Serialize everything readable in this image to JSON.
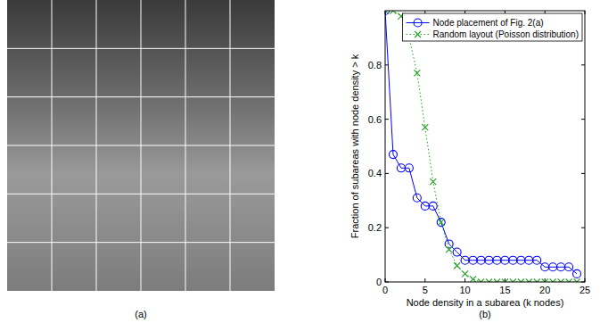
{
  "figure": {
    "panel_labels": [
      "(a)",
      "(b)"
    ]
  },
  "chart_data": {
    "type": "line",
    "x_label": "Node density in a subarea (k nodes)",
    "y_label": "Fraction of subareas with node density > k",
    "x": [
      0,
      1,
      2,
      3,
      4,
      5,
      6,
      7,
      8,
      9,
      10,
      11,
      12,
      13,
      14,
      15,
      16,
      17,
      18,
      19,
      20,
      21,
      22,
      23,
      24
    ],
    "series": [
      {
        "name": "Node placement of Fig. 2(a)",
        "color": "#0000ff",
        "marker": "circle",
        "line_style": "solid",
        "values": [
          1.0,
          0.47,
          0.42,
          0.42,
          0.31,
          0.28,
          0.28,
          0.22,
          0.14,
          0.11,
          0.08,
          0.08,
          0.08,
          0.08,
          0.08,
          0.08,
          0.08,
          0.08,
          0.08,
          0.08,
          0.055,
          0.055,
          0.055,
          0.055,
          0.03
        ]
      },
      {
        "name": "Random layout (Poisson distribution)",
        "color": "#22a022",
        "marker": "x",
        "line_style": "dotted",
        "values": [
          1.0,
          1.0,
          0.98,
          0.9,
          0.77,
          0.57,
          0.37,
          0.22,
          0.12,
          0.06,
          0.03,
          0.01,
          0.0,
          0.0,
          0.0,
          0.0,
          0.0,
          0.0,
          0.0,
          0.0,
          0.0,
          0.0,
          0.0,
          0.0,
          0.0
        ]
      }
    ],
    "xlim": [
      0,
      25
    ],
    "xticks": [
      0,
      5,
      10,
      15,
      20,
      25
    ],
    "ylim": [
      0,
      1
    ],
    "yticks": [
      0,
      0.2,
      0.4,
      0.6,
      0.8
    ],
    "grid": false,
    "legend": "upper right"
  }
}
